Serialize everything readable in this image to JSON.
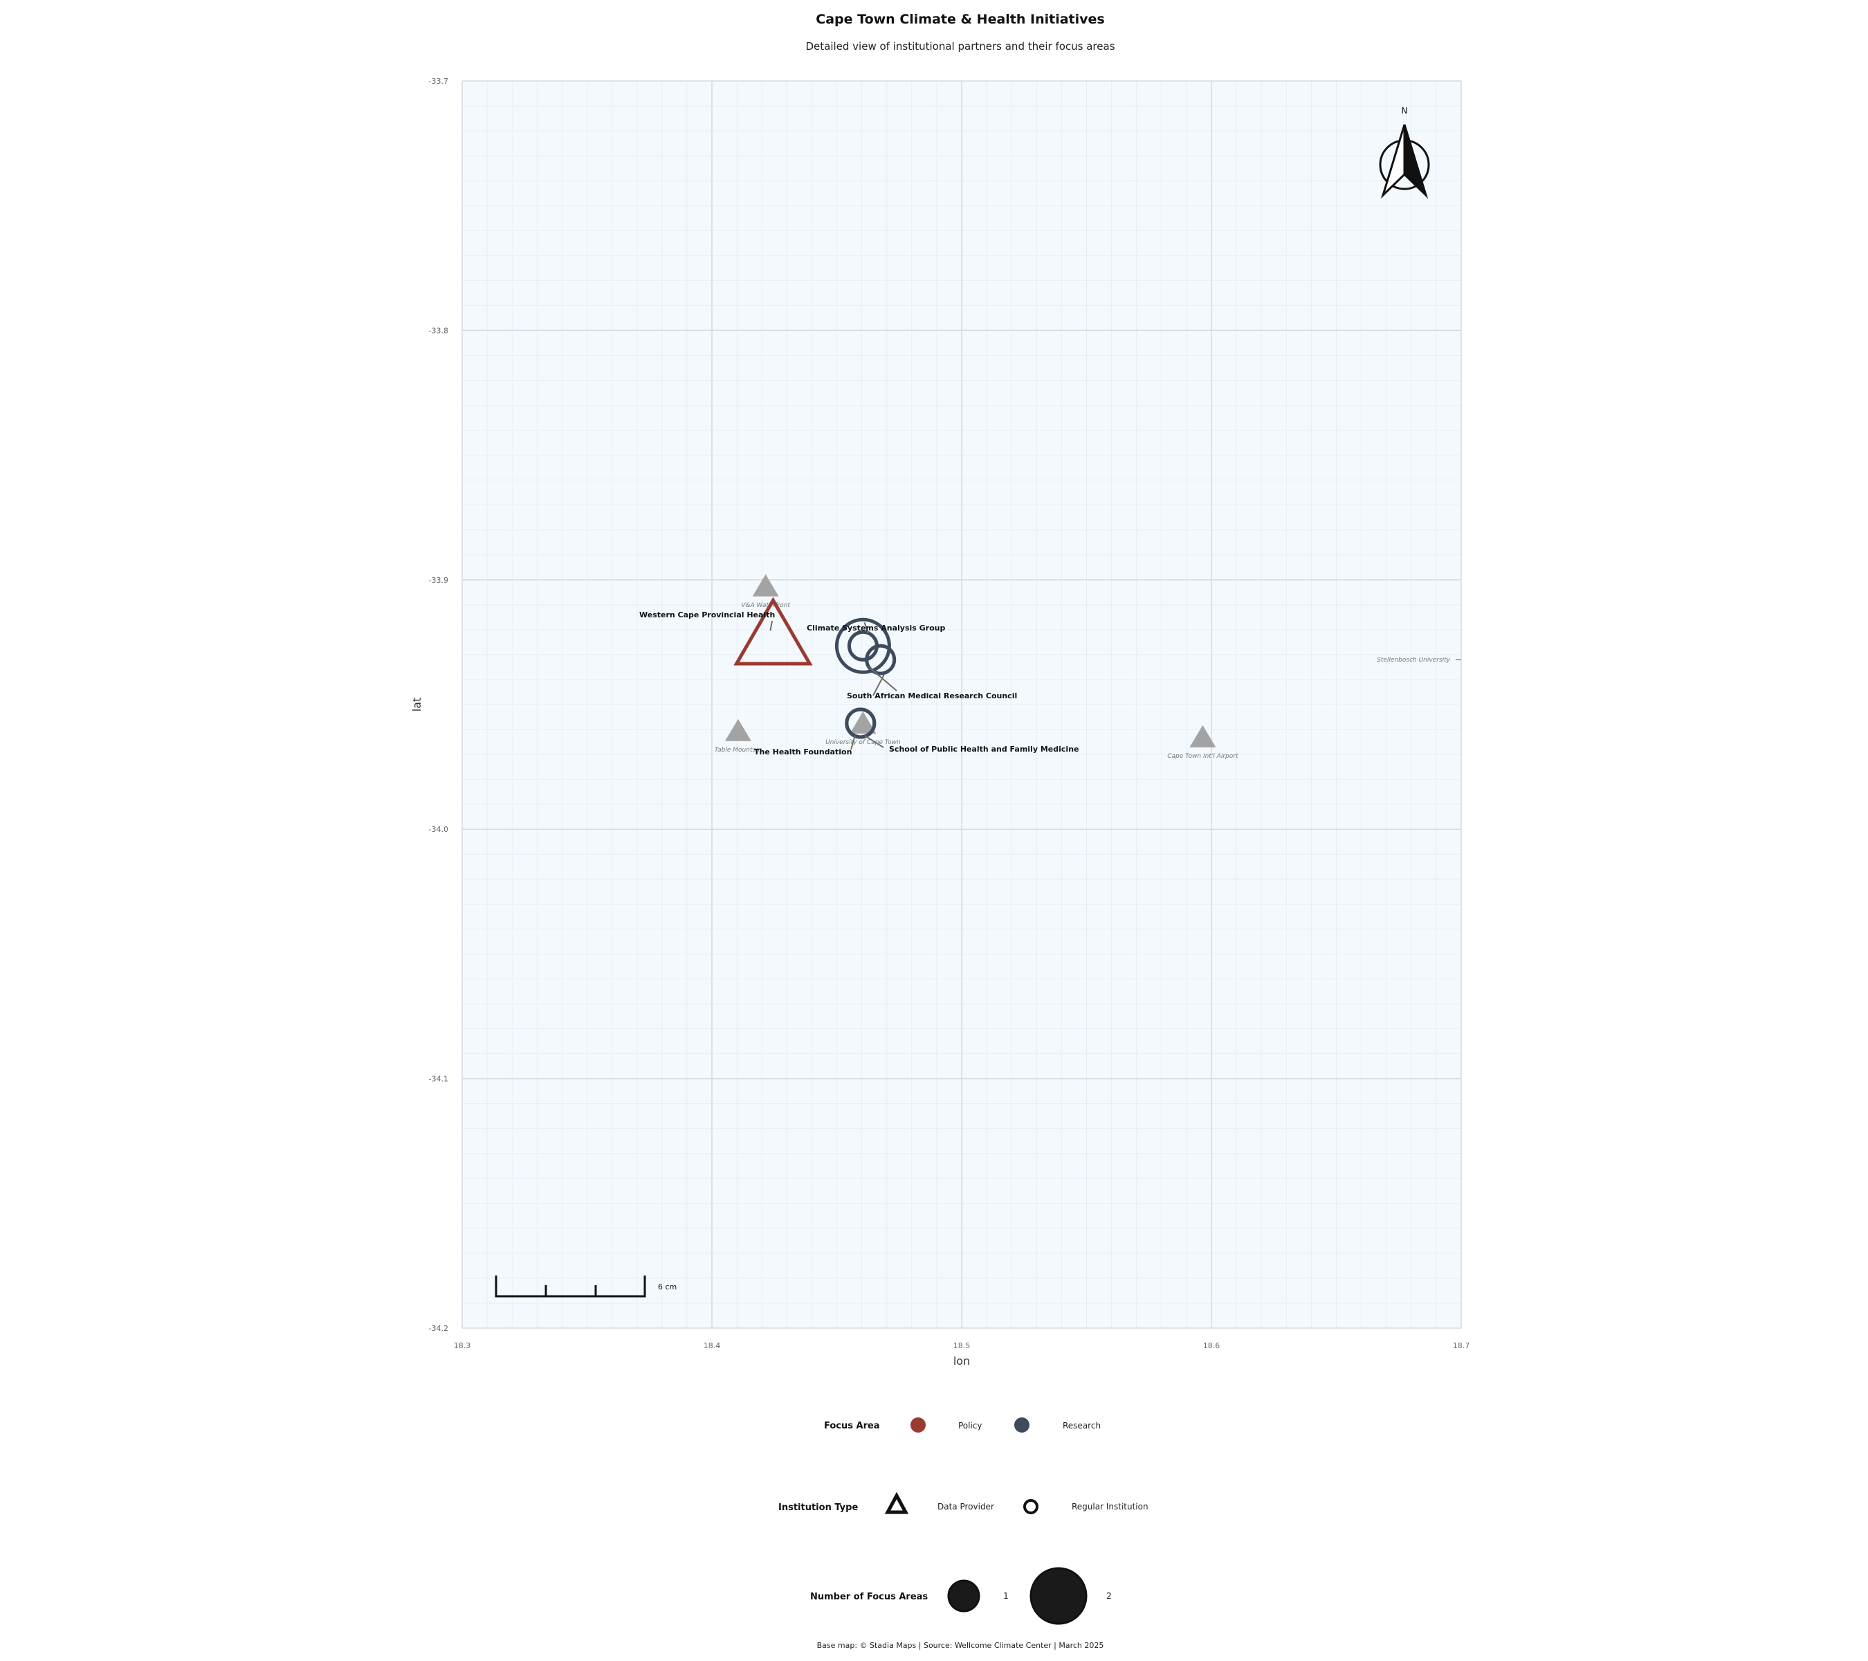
{
  "header": {
    "title": "Cape Town Climate & Health Initiatives",
    "subtitle": "Detailed view of institutional partners and their focus areas"
  },
  "map": {
    "xlabel": "lon",
    "ylabel": "lat",
    "xlim": [
      18.3,
      18.7
    ],
    "ylim": [
      -34.2,
      -33.7
    ],
    "x_ticks": [
      18.3,
      18.4,
      18.5,
      18.6,
      18.7
    ],
    "y_ticks": [
      -33.7,
      -33.8,
      -33.9,
      -34.0,
      -34.1,
      -34.2
    ],
    "x_tick_labels": [
      "18.3",
      "18.4",
      "18.5",
      "18.6",
      "18.7"
    ],
    "y_tick_labels": [
      "-33.7",
      "-33.8",
      "-33.9",
      "-34.0",
      "-34.1",
      "-34.2"
    ],
    "background": "#f4f9fd",
    "grid": true
  },
  "colors": {
    "policy": "#9b3a32",
    "research": "#3d4b5c",
    "landmark": "#a3a3a3"
  },
  "institutions": [
    {
      "name": "Western Cape Provincial Health",
      "lon": 18.4245,
      "lat": -33.921,
      "focus": "Policy",
      "type": "Data Provider",
      "focus_count": 2
    },
    {
      "name": "Climate Systems Analysis Group",
      "lon": 18.4605,
      "lat": -33.9265,
      "focus": "Research",
      "type": "Regular Institution",
      "focus_count": 2
    },
    {
      "name": "South African Medical Research Council",
      "lon": 18.4675,
      "lat": -33.932,
      "focus": "Research",
      "type": "Regular Institution",
      "focus_count": 1
    },
    {
      "name": "The Health Foundation",
      "lon": 18.4595,
      "lat": -33.9575,
      "focus": "Research",
      "type": "Regular Institution",
      "focus_count": 1
    },
    {
      "name": "School of Public Health and Family Medicine",
      "lon": 18.4595,
      "lat": -33.9575,
      "focus": "Research",
      "type": "Regular Institution",
      "focus_count": 1
    }
  ],
  "landmarks": [
    {
      "name": "V&A Waterfront",
      "lon": 18.4215,
      "lat": -33.9025
    },
    {
      "name": "Table Mountain",
      "lon": 18.4105,
      "lat": -33.9605
    },
    {
      "name": "University of Cape Town",
      "lon": 18.4605,
      "lat": -33.9575
    },
    {
      "name": "Cape Town Int'l Airport",
      "lon": 18.5965,
      "lat": -33.963
    },
    {
      "name": "Stellenbosch University",
      "lon": 18.86,
      "lat": -33.932
    }
  ],
  "scale_bar": {
    "label": "6 cm"
  },
  "north_arrow": {
    "label": "N"
  },
  "legend": {
    "focus_title": "Focus Area",
    "focus_items": [
      {
        "label": "Policy",
        "color": "#9b3a32"
      },
      {
        "label": "Research",
        "color": "#3d4b5c"
      }
    ],
    "type_title": "Institution Type",
    "type_items": [
      {
        "label": "Data Provider",
        "icon": "triangle-icon"
      },
      {
        "label": "Regular Institution",
        "icon": "circle-icon"
      }
    ],
    "count_title": "Number of Focus Areas",
    "count_items": [
      {
        "label": "1",
        "value": 1
      },
      {
        "label": "2",
        "value": 2
      }
    ]
  },
  "footer": {
    "caption": "Base map: © Stadia Maps | Source: Wellcome Climate Center | March 2025"
  }
}
